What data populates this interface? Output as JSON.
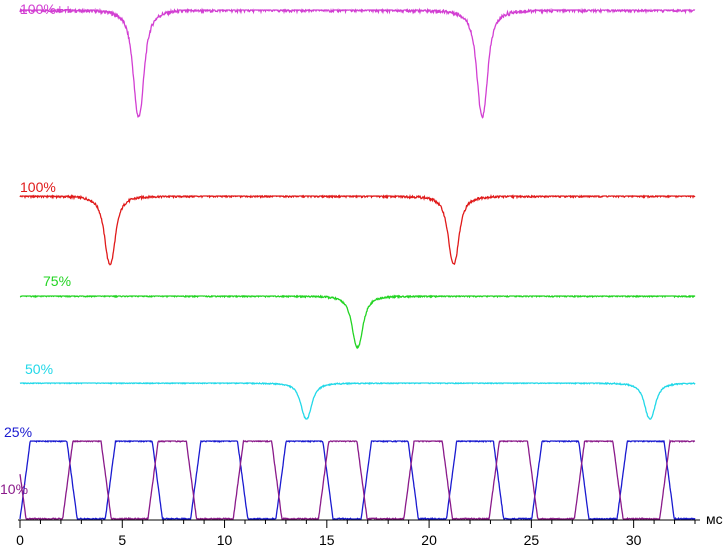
{
  "chart_data": {
    "type": "line",
    "title": "",
    "xlabel": "мс",
    "ylabel": "",
    "xlim": [
      0,
      33
    ],
    "x_ticks": [
      "0",
      "5",
      "10",
      "15",
      "20",
      "25",
      "30"
    ],
    "grid": false,
    "legend": "none",
    "series": [
      {
        "name": "100%++",
        "color": "#d23fd2",
        "level": 0.92,
        "period_ms": 16.75,
        "pulses_ms": [
          5.8,
          22.6
        ],
        "pulse_depth": 0.85,
        "pulse_width_ms": 0.9
      },
      {
        "name": "100%",
        "color": "#e01a1a",
        "level": 0.92,
        "period_ms": 16.75,
        "pulses_ms": [
          4.4,
          21.2
        ],
        "pulse_depth": 0.85,
        "pulse_width_ms": 0.9
      },
      {
        "name": "75%",
        "color": "#22d422",
        "level": 0.92,
        "period_ms": 16.75,
        "pulses_ms": [
          16.5
        ],
        "pulse_depth": 0.85,
        "pulse_width_ms": 0.9
      },
      {
        "name": "50%",
        "color": "#22d8e8",
        "level": 0.92,
        "period_ms": 16.75,
        "pulses_ms": [
          14.0,
          30.8
        ],
        "pulse_depth": 0.85,
        "pulse_width_ms": 0.9
      },
      {
        "name": "25%",
        "color": "#1a1ad0",
        "period_ms": 4.17,
        "duty": 0.55
      },
      {
        "name": "10%",
        "color": "#8a1a8a",
        "period_ms": 4.17,
        "duty": 0.45
      }
    ]
  }
}
